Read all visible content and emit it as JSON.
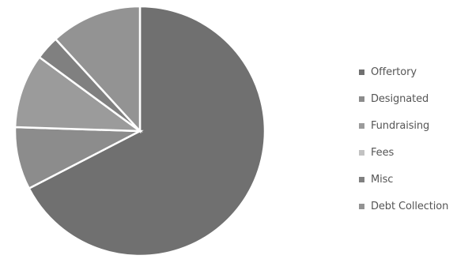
{
  "chart_data": {
    "type": "pie",
    "title": "",
    "start_angle_deg": 0,
    "direction": "clockwise",
    "legend_position": "right",
    "slice_border_color": "#ffffff",
    "categories": [
      "Offertory",
      "Designated",
      "Fundraising",
      "Fees",
      "Misc",
      "Debt Collection"
    ],
    "values": [
      67.4,
      8.1,
      9.6,
      0.0,
      3.1,
      11.8
    ],
    "colors": [
      "#707070",
      "#8c8c8c",
      "#9b9b9b",
      "#c2c2c2",
      "#808080",
      "#939393"
    ]
  }
}
